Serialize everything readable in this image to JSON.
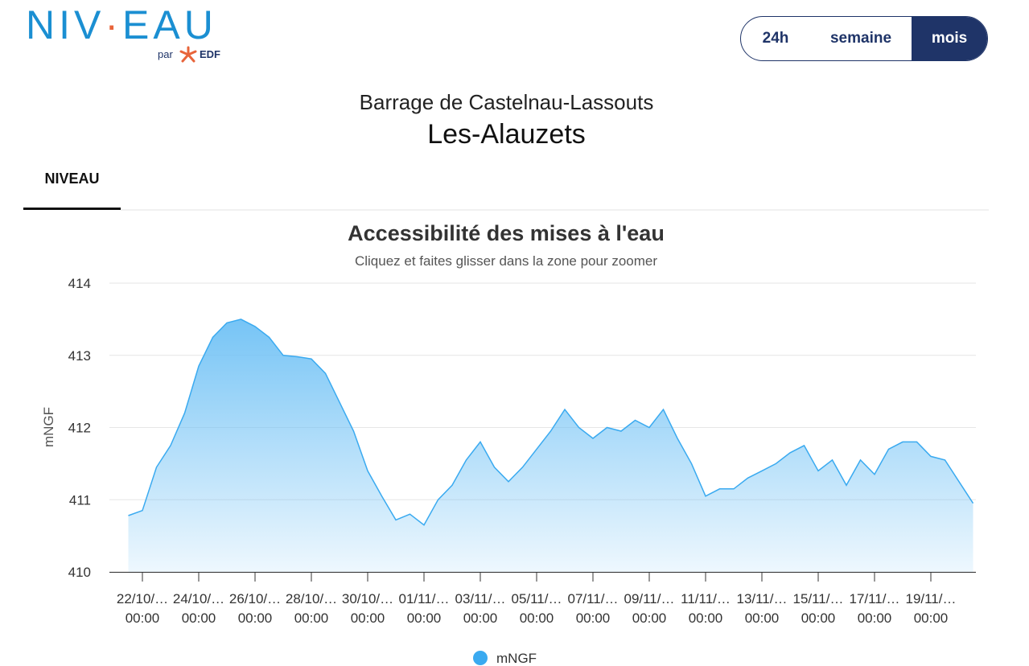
{
  "header": {
    "logo_parts": [
      "NIV",
      "·",
      "EAU"
    ],
    "logo_by": "par",
    "logo_brand": "EDF",
    "ranges": [
      "24h",
      "semaine",
      "mois"
    ],
    "active_range": 2,
    "site": "Barrage de Castelnau-Lassouts",
    "place": "Les-Alauzets"
  },
  "tabs": [
    "NIVEAU"
  ],
  "chart_data": {
    "type": "area",
    "title": "Accessibilité des mises à l'eau",
    "subtitle": "Cliquez et faites glisser dans la zone pour zoomer",
    "y_label": "mNGF",
    "categories": [
      null,
      "22/10/…\n00:00",
      null,
      null,
      null,
      "24/10/…\n00:00",
      null,
      null,
      null,
      "26/10/…\n00:00",
      null,
      null,
      null,
      "28/10/…\n00:00",
      null,
      null,
      null,
      "30/10/…\n00:00",
      null,
      null,
      null,
      "01/11/…\n00:00",
      null,
      null,
      null,
      "03/11/…\n00:00",
      null,
      null,
      null,
      "05/11/…\n00:00",
      null,
      null,
      null,
      "07/11/…\n00:00",
      null,
      null,
      null,
      "09/11/…\n00:00",
      null,
      null,
      null,
      "11/11/…\n00:00",
      null,
      null,
      null,
      "13/11/…\n00:00",
      null,
      null,
      null,
      "15/11/…\n00:00",
      null,
      null,
      null,
      "17/11/…\n00:00",
      null,
      null,
      null,
      "19/11/…\n00:00",
      null,
      null,
      null
    ],
    "series": [
      {
        "name": "mNGF",
        "color": "#3aaaf0",
        "values": [
          410.78,
          410.85,
          411.45,
          411.75,
          412.2,
          412.85,
          413.25,
          413.45,
          413.5,
          413.4,
          413.25,
          413.0,
          412.98,
          412.95,
          412.75,
          412.35,
          411.95,
          411.4,
          411.05,
          410.72,
          410.8,
          410.65,
          411.0,
          411.2,
          411.55,
          411.8,
          411.45,
          411.25,
          411.45,
          411.7,
          411.95,
          412.25,
          412.0,
          411.85,
          412.0,
          411.95,
          412.1,
          412.0,
          412.25,
          411.85,
          411.5,
          411.05,
          411.15,
          411.15,
          411.3,
          411.4,
          411.5,
          411.65,
          411.75,
          411.4,
          411.55,
          411.2,
          411.55,
          411.35,
          411.7,
          411.8,
          411.8,
          411.6,
          411.55,
          411.25,
          410.95
        ]
      }
    ],
    "ylim": [
      410,
      414
    ],
    "yticks": [
      410,
      411,
      412,
      413,
      414
    ],
    "grid": true,
    "legend": "bottom"
  }
}
